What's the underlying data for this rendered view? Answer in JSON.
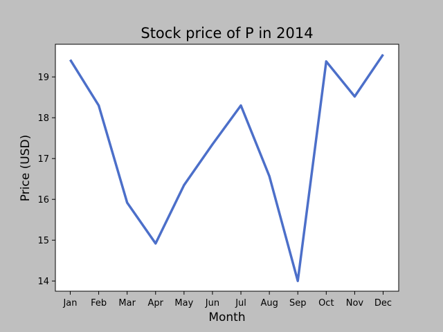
{
  "chart_data": {
    "type": "line",
    "title": "Stock price of P in 2014",
    "xlabel": "Month",
    "ylabel": "Price (USD)",
    "categories": [
      "Jan",
      "Feb",
      "Mar",
      "Apr",
      "May",
      "Jun",
      "Jul",
      "Aug",
      "Sep",
      "Oct",
      "Nov",
      "Dec"
    ],
    "series": [
      {
        "values": [
          19.42,
          18.3,
          15.92,
          14.92,
          16.35,
          17.35,
          18.3,
          16.57,
          14.0,
          19.38,
          18.52,
          19.55
        ]
      }
    ],
    "ylim": [
      13.75,
      19.8
    ],
    "yticks": [
      14,
      15,
      16,
      17,
      18,
      19
    ],
    "grid": false,
    "legend": "none",
    "colors": {
      "line": "#4c6fc9",
      "figure_background": "#bfbfbf",
      "plot_background": "#ffffff"
    }
  }
}
